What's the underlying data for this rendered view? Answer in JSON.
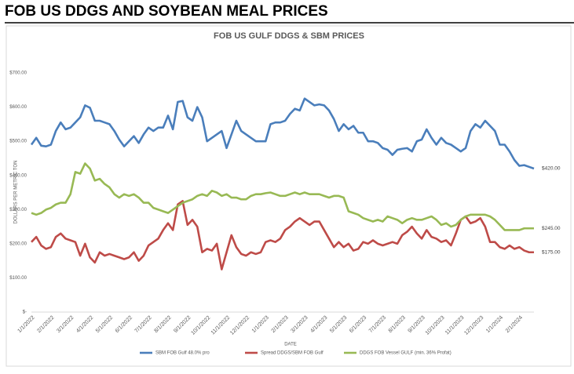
{
  "header": {
    "title": "FOB US DDGS AND SOYBEAN MEAL PRICES"
  },
  "chart_data": {
    "type": "line",
    "title": "FOB US GULF DDGS & SBM PRICES",
    "x_label": "DATE",
    "y_label": "DOLLARS PER METRIC TON",
    "categories": [
      "1/1/2022",
      null,
      null,
      null,
      "2/1/2022",
      null,
      null,
      null,
      "3/1/2022",
      null,
      null,
      null,
      "4/1/2022",
      null,
      null,
      null,
      "5/1/2022",
      null,
      null,
      null,
      "6/1/2022",
      null,
      null,
      null,
      "7/1/2022",
      null,
      null,
      null,
      "8/1/2022",
      null,
      null,
      null,
      "9/1/2022",
      null,
      null,
      null,
      "10/1/2022",
      null,
      null,
      null,
      "11/1/2022",
      null,
      null,
      null,
      "12/1/2022",
      null,
      null,
      null,
      "1/1/2023",
      null,
      null,
      null,
      "2/1/2023",
      null,
      null,
      null,
      "3/1/2023",
      null,
      null,
      null,
      "4/1/2023",
      null,
      null,
      null,
      "5/1/2023",
      null,
      null,
      null,
      "6/1/2023",
      null,
      null,
      null,
      "7/1/2023",
      null,
      null,
      null,
      "8/1/2023",
      null,
      null,
      null,
      "9/1/2023",
      null,
      null,
      null,
      "10/1/2023",
      null,
      null,
      null,
      "11/1/2023",
      null,
      null,
      null,
      "12/1/2023",
      null,
      null,
      null,
      "1/1/2024",
      null,
      null,
      null,
      "2/1/2024",
      null,
      null,
      null
    ],
    "series": [
      {
        "name": "SBM FOB Gulf 48.0% pro",
        "color": "#4a7ebb",
        "end_label": "$420.00",
        "values": [
          490,
          510,
          487,
          485,
          490,
          530,
          555,
          535,
          540,
          555,
          570,
          605,
          598,
          560,
          560,
          555,
          550,
          530,
          505,
          485,
          500,
          515,
          495,
          520,
          540,
          530,
          540,
          540,
          575,
          535,
          615,
          618,
          570,
          560,
          600,
          570,
          500,
          510,
          520,
          530,
          480,
          520,
          560,
          530,
          520,
          510,
          500,
          500,
          500,
          550,
          555,
          555,
          560,
          580,
          595,
          590,
          625,
          615,
          605,
          608,
          605,
          590,
          565,
          530,
          550,
          535,
          545,
          525,
          525,
          500,
          500,
          495,
          480,
          475,
          460,
          475,
          478,
          480,
          470,
          500,
          505,
          535,
          510,
          490,
          510,
          495,
          490,
          480,
          470,
          480,
          530,
          550,
          540,
          560,
          545,
          530,
          490,
          490,
          470,
          445,
          428,
          430,
          425,
          420
        ]
      },
      {
        "name": "Spread DDGS/SBM FOB Gulf",
        "color": "#be4b48",
        "end_label": "$175.00",
        "values": [
          205,
          220,
          195,
          185,
          190,
          220,
          230,
          215,
          210,
          205,
          165,
          200,
          160,
          145,
          175,
          165,
          170,
          165,
          160,
          155,
          160,
          175,
          150,
          165,
          195,
          205,
          215,
          240,
          260,
          240,
          315,
          325,
          255,
          270,
          250,
          175,
          185,
          180,
          200,
          125,
          175,
          225,
          190,
          170,
          165,
          175,
          170,
          175,
          205,
          210,
          205,
          215,
          240,
          250,
          265,
          275,
          265,
          255,
          265,
          265,
          240,
          215,
          190,
          205,
          190,
          200,
          180,
          185,
          205,
          200,
          210,
          200,
          195,
          200,
          205,
          200,
          225,
          235,
          250,
          230,
          215,
          240,
          220,
          215,
          205,
          210,
          195,
          230,
          270,
          280,
          260,
          265,
          275,
          250,
          205,
          205,
          190,
          185,
          195,
          185,
          190,
          180,
          175,
          175
        ]
      },
      {
        "name": "DDGS FOB Vessel GULF  (min. 36% Profat)",
        "color": "#98b954",
        "end_label": "$245.00",
        "values": [
          290,
          285,
          290,
          300,
          305,
          315,
          320,
          320,
          345,
          410,
          405,
          435,
          420,
          385,
          390,
          375,
          365,
          345,
          335,
          345,
          340,
          345,
          335,
          320,
          320,
          305,
          300,
          295,
          290,
          300,
          310,
          320,
          325,
          330,
          340,
          345,
          340,
          355,
          350,
          340,
          345,
          335,
          335,
          330,
          330,
          340,
          345,
          345,
          348,
          350,
          345,
          340,
          340,
          345,
          350,
          345,
          350,
          345,
          345,
          345,
          340,
          335,
          340,
          340,
          335,
          295,
          290,
          285,
          275,
          270,
          265,
          270,
          265,
          280,
          275,
          270,
          260,
          270,
          275,
          270,
          270,
          275,
          280,
          270,
          255,
          260,
          250,
          255,
          270,
          280,
          285,
          285,
          285,
          285,
          280,
          270,
          255,
          240,
          240,
          240,
          240,
          245,
          245,
          245
        ]
      }
    ],
    "ylim": [
      0,
      700
    ],
    "yticks": [
      {
        "value": 0,
        "label": "$-"
      },
      {
        "value": 100,
        "label": "$100.00"
      },
      {
        "value": 200,
        "label": "$200.00"
      },
      {
        "value": 300,
        "label": "$300.00"
      },
      {
        "value": 400,
        "label": "$400.00"
      },
      {
        "value": 500,
        "label": "$500.00"
      },
      {
        "value": 600,
        "label": "$600.00"
      },
      {
        "value": 700,
        "label": "$700.00"
      }
    ],
    "grid": false
  }
}
